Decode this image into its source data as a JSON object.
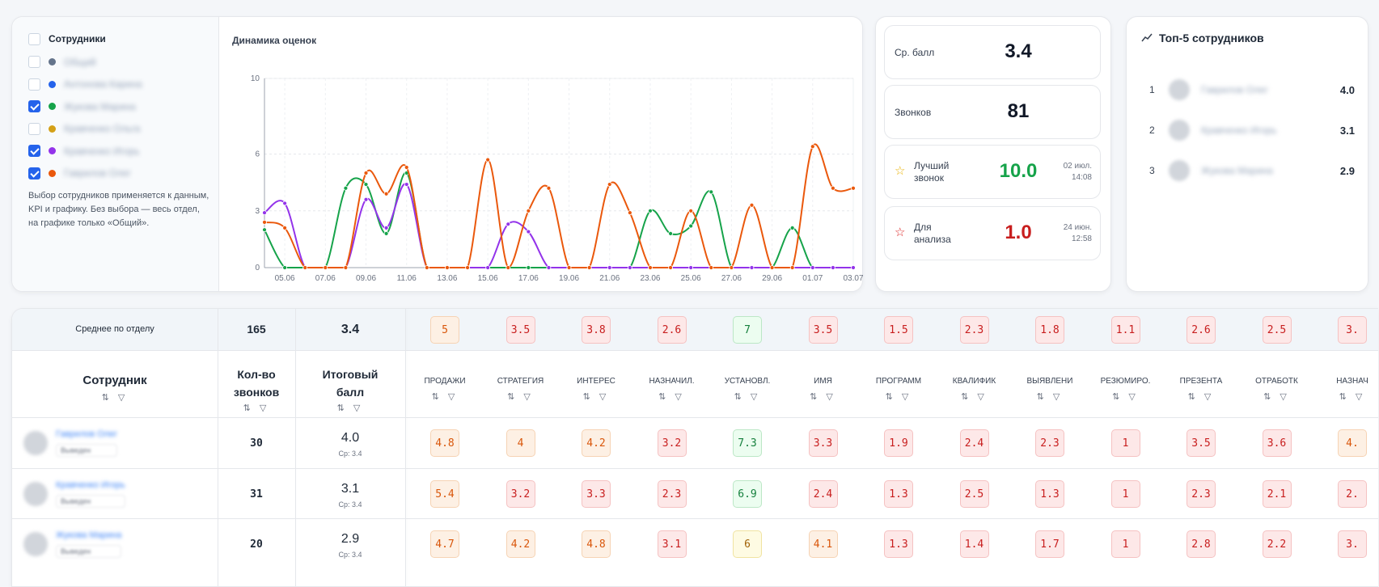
{
  "employees": {
    "header": "Сотрудники",
    "items": [
      {
        "name": "Общий",
        "color": "#64748b",
        "checked": false
      },
      {
        "name": "Антонова Карина",
        "color": "#2563eb",
        "checked": false
      },
      {
        "name": "Жукова Марина",
        "color": "#16a34a",
        "checked": true
      },
      {
        "name": "Кравченко Ольга",
        "color": "#d4a017",
        "checked": false
      },
      {
        "name": "Кравченко Игорь",
        "color": "#9333ea",
        "checked": true
      },
      {
        "name": "Гаврилов Олег",
        "color": "#ea580c",
        "checked": true
      }
    ],
    "note": "Выбор сотрудников применяется к данным, KPI и графику. Без выбора — весь отдел, на графике только «Общий»."
  },
  "chart_data": {
    "type": "line",
    "title": "Динамика оценок",
    "x": [
      "04.06",
      "05.06",
      "06.06",
      "07.06",
      "08.06",
      "09.06",
      "10.06",
      "11.06",
      "12.06",
      "13.06",
      "14.06",
      "15.06",
      "16.06",
      "17.06",
      "18.06",
      "19.06",
      "20.06",
      "21.06",
      "22.06",
      "23.06",
      "24.06",
      "25.06",
      "26.06",
      "27.06",
      "28.06",
      "29.06",
      "30.06",
      "01.07",
      "02.07",
      "03.07"
    ],
    "xticks": [
      "05.06",
      "07.06",
      "09.06",
      "11.06",
      "13.06",
      "15.06",
      "17.06",
      "19.06",
      "21.06",
      "23.06",
      "25.06",
      "27.06",
      "29.06",
      "01.07",
      "03.07"
    ],
    "yticks": [
      0,
      3,
      6,
      10
    ],
    "ylim": [
      0,
      10
    ],
    "series": [
      {
        "name": "Жукова Марина",
        "color": "#16a34a",
        "values": [
          2,
          0,
          0,
          0,
          4.2,
          4.4,
          1.8,
          5,
          0,
          0,
          0,
          0,
          0,
          0,
          0,
          0,
          0,
          0,
          0,
          3,
          1.8,
          2.2,
          4,
          0,
          0,
          0,
          2.1,
          0,
          0,
          0
        ]
      },
      {
        "name": "Кравченко Игорь",
        "color": "#9333ea",
        "values": [
          2.9,
          3.4,
          0,
          0,
          0,
          3.6,
          2.1,
          4.4,
          0,
          0,
          0,
          0,
          2.3,
          1.9,
          0,
          0,
          0,
          0,
          0,
          0,
          0,
          0,
          0,
          0,
          0,
          0,
          0,
          0,
          0,
          0
        ]
      },
      {
        "name": "Гаврилов Олег",
        "color": "#ea580c",
        "values": [
          2.4,
          2.1,
          0,
          0,
          0,
          5,
          3.9,
          5.3,
          0,
          0,
          0,
          5.7,
          0,
          3,
          4.2,
          0,
          0,
          4.4,
          2.9,
          0,
          0,
          3,
          0,
          0,
          3.3,
          0,
          0,
          6.4,
          4.2,
          4.2
        ]
      }
    ]
  },
  "kpi": {
    "avg": {
      "label": "Ср. балл",
      "value": "3.4"
    },
    "calls": {
      "label": "Звонков",
      "value": "81"
    },
    "best": {
      "label": "Лучший звонок",
      "value": "10.0",
      "date": "02 июл.",
      "time": "14:08",
      "color": "#16a34a"
    },
    "worst": {
      "label": "Для анализа",
      "value": "1.0",
      "date": "24 июн.",
      "time": "12:58",
      "color": "#dc2626"
    }
  },
  "top5": {
    "title": "Топ-5 сотрудников",
    "items": [
      {
        "rank": "1",
        "name": "Гаврилов Олег",
        "score": "4.0"
      },
      {
        "rank": "2",
        "name": "Кравченко Игорь",
        "score": "3.1"
      },
      {
        "rank": "3",
        "name": "Жукова Марина",
        "score": "2.9"
      }
    ]
  },
  "table": {
    "avg_label": "Среднее по отделу",
    "avg_calls": "165",
    "avg_score": "3.4",
    "col_employee": "Сотрудник",
    "col_calls_1": "Кол-во",
    "col_calls_2": "звонков",
    "col_score_1": "Итоговый",
    "col_score_2": "балл",
    "criteria": [
      "ПРОДАЖИ",
      "СТРАТЕГИЯ",
      "ИНТЕРЕС",
      "НАЗНАЧИЛ.",
      "УСТАНОВЛ.",
      "ИМЯ",
      "ПРОГРАММ",
      "КВАЛИФИК",
      "ВЫЯВЛЕНИ",
      "РЕЗЮМИРО.",
      "ПРЕЗЕНТА",
      "ОТРАБОТК",
      "НАЗНАЧ"
    ],
    "avg_values": [
      "5",
      "3.5",
      "3.8",
      "2.6",
      "7",
      "3.5",
      "1.5",
      "2.3",
      "1.8",
      "1.1",
      "2.6",
      "2.5",
      "3."
    ],
    "rows": [
      {
        "name": "Гаврилов Олег",
        "tag": "Выведен",
        "calls": "30",
        "score": "4.0",
        "sub": "Ср: 3.4",
        "values": [
          "4.8",
          "4",
          "4.2",
          "3.2",
          "7.3",
          "3.3",
          "1.9",
          "2.4",
          "2.3",
          "1",
          "3.5",
          "3.6",
          "4."
        ]
      },
      {
        "name": "Кравченко Игорь",
        "tag": "Выведен",
        "calls": "31",
        "score": "3.1",
        "sub": "Ср: 3.4",
        "values": [
          "5.4",
          "3.2",
          "3.3",
          "2.3",
          "6.9",
          "2.4",
          "1.3",
          "2.5",
          "1.3",
          "1",
          "2.3",
          "2.1",
          "2."
        ]
      },
      {
        "name": "Жукова Марина",
        "tag": "Выведен",
        "calls": "20",
        "score": "2.9",
        "sub": "Ср: 3.4",
        "values": [
          "4.7",
          "4.2",
          "4.8",
          "3.1",
          "6",
          "4.1",
          "1.3",
          "1.4",
          "1.7",
          "1",
          "2.8",
          "2.2",
          "3."
        ]
      }
    ]
  }
}
